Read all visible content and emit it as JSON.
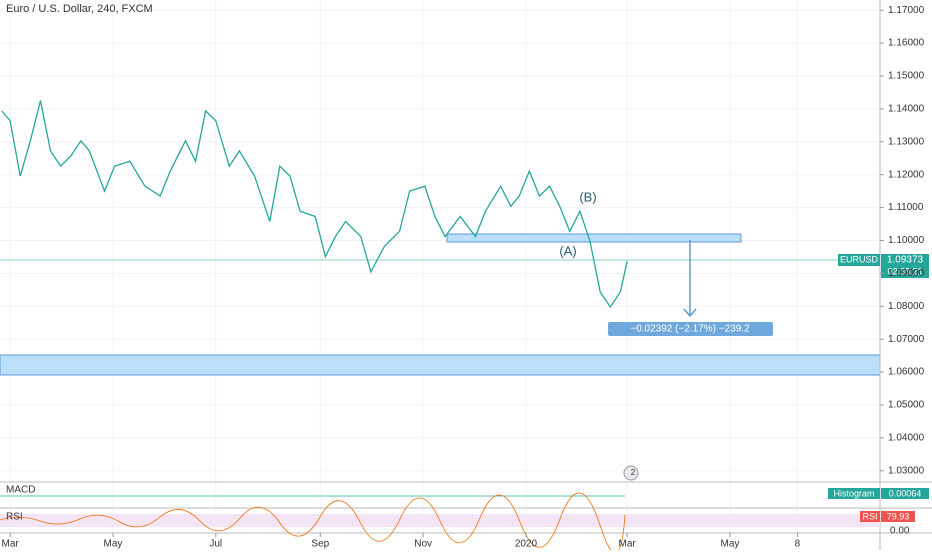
{
  "chart_data": {
    "type": "line",
    "title": "Euro / U.S. Dollar, 240, FXCM",
    "x": [
      -5,
      0,
      6,
      12,
      18,
      24,
      30,
      36,
      42,
      47,
      56,
      62,
      71,
      80,
      89,
      95,
      104,
      110,
      116,
      122,
      130,
      136,
      145,
      154,
      160,
      166,
      172,
      181,
      187,
      193,
      199,
      208,
      214,
      222,
      231,
      237,
      246,
      252,
      258,
      267,
      276,
      282,
      291,
      297,
      302,
      308,
      314,
      320,
      326,
      332,
      338,
      344,
      350,
      356,
      362,
      366
    ],
    "series": [
      {
        "name": "EURUSD",
        "color": "#26a69a",
        "values": [
          1.1394,
          1.1364,
          1.1196,
          1.1303,
          1.1425,
          1.1272,
          1.1226,
          1.1257,
          1.1303,
          1.1272,
          1.115,
          1.1226,
          1.1241,
          1.1165,
          1.1135,
          1.1211,
          1.1303,
          1.1241,
          1.1394,
          1.1364,
          1.1226,
          1.1272,
          1.1196,
          1.1058,
          1.1226,
          1.1196,
          1.1089,
          1.1073,
          1.0951,
          1.1012,
          1.1058,
          1.1012,
          1.0905,
          1.0982,
          1.1028,
          1.115,
          1.1165,
          1.1073,
          1.1012,
          1.1073,
          1.1012,
          1.1089,
          1.1165,
          1.1104,
          1.1135,
          1.1211,
          1.1135,
          1.1165,
          1.1104,
          1.1028,
          1.1089,
          1.0997,
          1.0844,
          1.0798,
          1.0844,
          1.0936
        ]
      }
    ],
    "xlim": [
      -6,
      516
    ],
    "xticks": [
      {
        "value": 0,
        "label": "Mar"
      },
      {
        "value": 61,
        "label": "May"
      },
      {
        "value": 122,
        "label": "Jul"
      },
      {
        "value": 184,
        "label": "Sep"
      },
      {
        "value": 245,
        "label": "Nov"
      },
      {
        "value": 306,
        "label": "2020"
      },
      {
        "value": 366,
        "label": "Mar"
      },
      {
        "value": 427,
        "label": "May"
      },
      {
        "value": 467,
        "label": "8"
      }
    ],
    "ylim": [
      1.0272,
      1.1731
    ],
    "yticks": [
      {
        "value": 1.03,
        "label": "1.03000"
      },
      {
        "value": 1.04,
        "label": "1.04000"
      },
      {
        "value": 1.05,
        "label": "1.05000"
      },
      {
        "value": 1.06,
        "label": "1.06000"
      },
      {
        "value": 1.07,
        "label": "1.07000"
      },
      {
        "value": 1.08,
        "label": "1.08000"
      },
      {
        "value": 1.09,
        "label": "1.09000"
      },
      {
        "value": 1.1,
        "label": "1.10000"
      },
      {
        "value": 1.11,
        "label": "1.11000"
      },
      {
        "value": 1.12,
        "label": "1.12000"
      },
      {
        "value": 1.13,
        "label": "1.13000"
      },
      {
        "value": 1.14,
        "label": "1.14000"
      },
      {
        "value": 1.15,
        "label": "1.15000"
      },
      {
        "value": 1.16,
        "label": "1.16000"
      },
      {
        "value": 1.17,
        "label": "1.17000"
      }
    ],
    "grid": true,
    "annotations": {
      "wave_b": "(B)",
      "wave_a": "(A)",
      "measure": "−0.02392 (−2.17%) −239.2",
      "badge": "2"
    },
    "price_label": {
      "symbol": "EURUSD",
      "price": "1.09373",
      "countdown": "02:38:21"
    },
    "macd": {
      "title": "MACD",
      "label": "Histogram",
      "value": "0.00064"
    },
    "rsi": {
      "title": "RSI",
      "value": "79.93",
      "axis": "0.00"
    }
  }
}
